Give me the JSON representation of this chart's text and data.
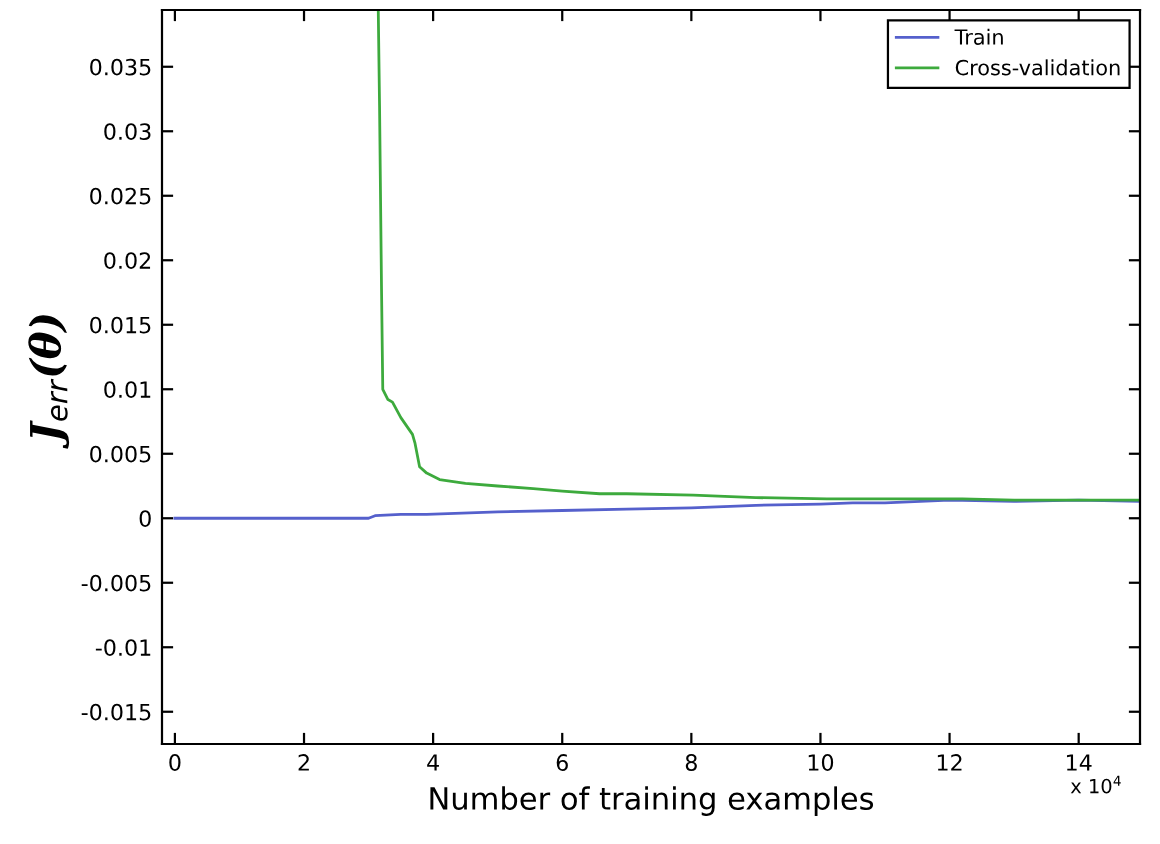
{
  "chart_data": {
    "type": "line",
    "xlabel": "Number of training examples",
    "ylabel": "J$_{err}$(θ)",
    "annotations": [
      "x 10$^{4}$"
    ],
    "xlim": [
      -0.2,
      14.95
    ],
    "xticks": [
      0,
      2,
      4,
      6,
      8,
      10,
      12,
      14
    ],
    "ylim": [
      -0.0175,
      0.0394
    ],
    "yticks": [
      -0.015,
      -0.01,
      -0.005,
      0,
      0.005,
      0.01,
      0.015,
      0.02,
      0.025,
      0.03,
      0.035
    ],
    "grid": false,
    "legend": "top right",
    "marker": "none",
    "line_style": "solid",
    "series": [
      {
        "name": "Train",
        "color": "#5560cc",
        "x": [
          0,
          1,
          2,
          3.0,
          3.1,
          3.5,
          3.9,
          5,
          6,
          7,
          8,
          9,
          10,
          10.5,
          11,
          12,
          13,
          14,
          14.95
        ],
        "values": [
          0,
          0,
          0,
          0,
          0.0002,
          0.0003,
          0.0003,
          0.0005,
          0.0006,
          0.0007,
          0.0008,
          0.001,
          0.0011,
          0.0012,
          0.0012,
          0.0014,
          0.0013,
          0.0014,
          0.0013
        ]
      },
      {
        "name": "Cross-validation",
        "color": "#3daa3d",
        "x": [
          3.15,
          3.17,
          3.2,
          3.22,
          3.3,
          3.37,
          3.5,
          3.68,
          3.72,
          3.79,
          3.9,
          4.1,
          4.5,
          5,
          5.55,
          6,
          6.58,
          7,
          8.03,
          9,
          10.1,
          11,
          12.2,
          13,
          14,
          14.95
        ],
        "values": [
          0.0394,
          0.032,
          0.018,
          0.01,
          0.0092,
          0.009,
          0.0078,
          0.0065,
          0.0058,
          0.004,
          0.0035,
          0.003,
          0.0027,
          0.0025,
          0.0023,
          0.0021,
          0.0019,
          0.0019,
          0.0018,
          0.0016,
          0.0015,
          0.0015,
          0.0015,
          0.0014,
          0.0014,
          0.0014
        ]
      }
    ]
  }
}
